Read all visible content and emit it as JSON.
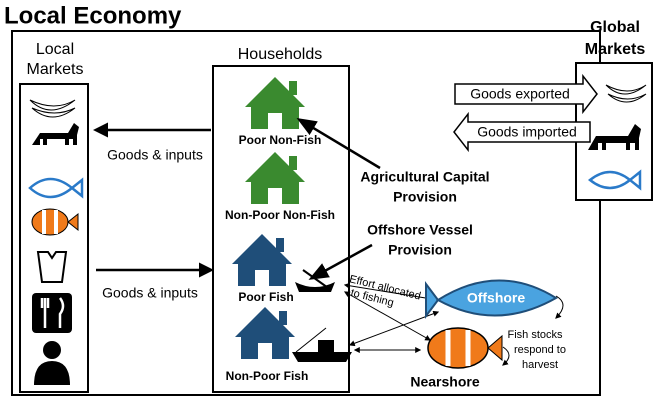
{
  "title": "Local Economy",
  "local_markets": {
    "label": [
      "Local",
      "Markets"
    ]
  },
  "global_markets": {
    "label": [
      "Global",
      "Markets"
    ]
  },
  "households": {
    "title": "Households",
    "types": [
      "Poor Non-Fish",
      "Non-Poor Non-Fish",
      "Poor Fish",
      "Non-Poor Fish"
    ]
  },
  "flows": {
    "to_local": "Goods & inputs",
    "to_households": "Goods & inputs",
    "exported": "Goods exported",
    "imported": "Goods imported",
    "effort": [
      "Effort allocated",
      "to fishing"
    ]
  },
  "provisions": {
    "agricultural": [
      "Agricultural Capital",
      "Provision"
    ],
    "offshore_vessel": [
      "Offshore Vessel",
      "Provision"
    ]
  },
  "fish_stocks": {
    "offshore": "Offshore",
    "nearshore": "Nearshore",
    "response": [
      "Fish stocks",
      "respond to",
      "harvest"
    ]
  }
}
